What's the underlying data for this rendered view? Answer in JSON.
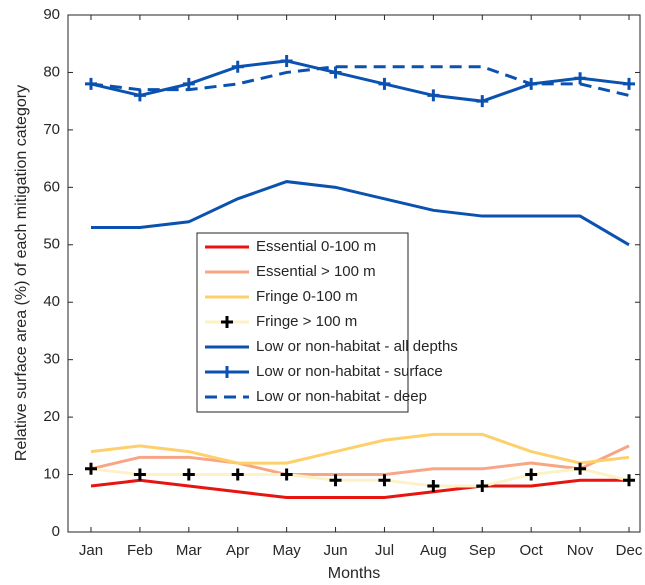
{
  "chart_data": {
    "type": "line",
    "xlabel": "Months",
    "ylabel": "Relative surface area (%) of each mitigation category",
    "categories": [
      "Jan",
      "Feb",
      "Mar",
      "Apr",
      "May",
      "Jun",
      "Jul",
      "Aug",
      "Sep",
      "Oct",
      "Nov",
      "Dec"
    ],
    "ylim": [
      0,
      90
    ],
    "yticks": [
      0,
      10,
      20,
      30,
      40,
      50,
      60,
      70,
      80,
      90
    ],
    "series": [
      {
        "name": "Essential 0-100 m",
        "color": "#e8140f",
        "values": [
          8,
          9,
          8,
          7,
          6,
          6,
          6,
          7,
          8,
          8,
          9,
          9
        ]
      },
      {
        "name": "Essential > 100 m",
        "color": "#f7a585",
        "values": [
          11,
          13,
          13,
          12,
          10,
          10,
          10,
          11,
          11,
          12,
          11,
          15
        ]
      },
      {
        "name": "Fringe 0-100 m",
        "color": "#fdd06c",
        "values": [
          14,
          15,
          14,
          12,
          12,
          14,
          16,
          17,
          17,
          14,
          12,
          13
        ]
      },
      {
        "name": "Fringe > 100 m",
        "color": "#fdf2c6",
        "marker": "+",
        "marker_color": "#000000",
        "values": [
          11,
          10,
          10,
          10,
          10,
          9,
          9,
          8,
          8,
          10,
          11,
          9
        ]
      },
      {
        "name": "Low or non-habitat - all depths",
        "color": "#0b52b0",
        "values": [
          53,
          53,
          54,
          58,
          61,
          60,
          58,
          56,
          55,
          55,
          55,
          50
        ]
      },
      {
        "name": "Low or non-habitat - surface",
        "color": "#0b52b0",
        "marker": "+",
        "values": [
          78,
          76,
          78,
          81,
          82,
          80,
          78,
          76,
          75,
          78,
          79,
          78
        ]
      },
      {
        "name": "Low or non-habitat - deep",
        "color": "#0b52b0",
        "linestyle": "dashed",
        "values": [
          78,
          77,
          77,
          78,
          80,
          81,
          81,
          81,
          81,
          78,
          78,
          76
        ]
      }
    ]
  }
}
